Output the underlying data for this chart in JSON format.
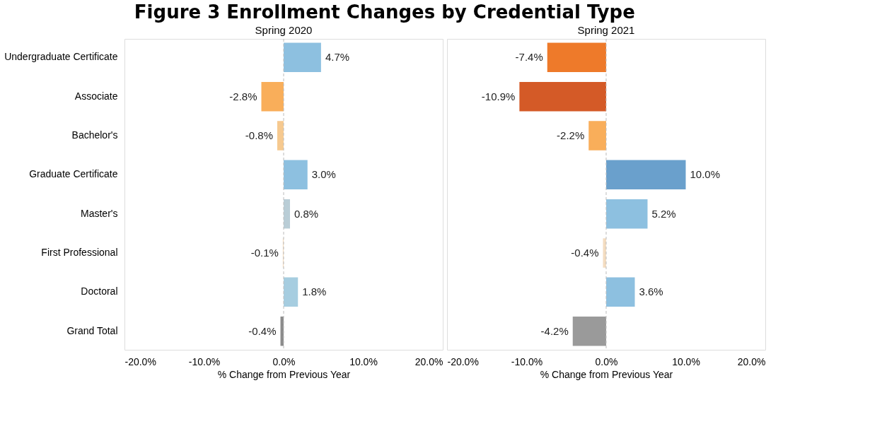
{
  "chart_data": [
    {
      "type": "bar",
      "orientation": "horizontal",
      "title": "Figure 3 Enrollment Changes by Credential Type",
      "subtitle": "Spring 2020",
      "xlabel": "% Change from Previous Year",
      "categories": [
        "Undergraduate Certificate",
        "Associate",
        "Bachelor's",
        "Graduate Certificate",
        "Master's",
        "First Professional",
        "Doctoral",
        "Grand Total"
      ],
      "values": [
        4.7,
        -2.8,
        -0.8,
        3.0,
        0.8,
        -0.1,
        1.8,
        -0.4
      ],
      "value_labels": [
        "4.7%",
        "-2.8%",
        "-0.8%",
        "3.0%",
        "0.8%",
        "-0.1%",
        "1.8%",
        "-0.4%"
      ],
      "colors": [
        "#8dc0e0",
        "#f9ae5a",
        "#f6c98f",
        "#8dc0e0",
        "#b9cdd6",
        "#f3dcc0",
        "#a6cde0",
        "#8c8c8c"
      ],
      "xlim": [
        -20,
        20
      ],
      "xticks": [
        {
          "value": -20,
          "label": "-20.0%"
        },
        {
          "value": -10,
          "label": "-10.0%"
        },
        {
          "value": 0,
          "label": "0.0%"
        },
        {
          "value": 10,
          "label": "10.0%"
        },
        {
          "value": 20,
          "label": "20.0%"
        }
      ],
      "ref_lines": [
        {
          "axis": "x",
          "value": 0,
          "color": "#bbbbbb",
          "line_style": "dashed"
        }
      ]
    },
    {
      "type": "bar",
      "orientation": "horizontal",
      "subtitle": "Spring 2021",
      "xlabel": "% Change from Previous Year",
      "tick_labels": "x",
      "categories": [
        "Undergraduate Certificate",
        "Associate",
        "Bachelor's",
        "Graduate Certificate",
        "Master's",
        "First Professional",
        "Doctoral",
        "Grand Total"
      ],
      "values": [
        -7.4,
        -10.9,
        -2.2,
        10.0,
        5.2,
        -0.4,
        3.6,
        -4.2
      ],
      "value_labels": [
        "-7.4%",
        "-10.9%",
        "-2.2%",
        "10.0%",
        "5.2%",
        "-0.4%",
        "3.6%",
        "-4.2%"
      ],
      "colors": [
        "#ee7a2a",
        "#d45a27",
        "#f9ae5a",
        "#6aa0cc",
        "#8dc0e0",
        "#f3dcc0",
        "#8dc0e0",
        "#9a9a9a"
      ],
      "xlim": [
        -20,
        20
      ],
      "xticks": [
        {
          "value": -20,
          "label": "-20.0%"
        },
        {
          "value": -10,
          "label": "-10.0%"
        },
        {
          "value": 0,
          "label": "0.0%"
        },
        {
          "value": 10,
          "label": "10.0%"
        },
        {
          "value": 20,
          "label": "20.0%"
        }
      ],
      "ref_lines": [
        {
          "axis": "x",
          "value": 0,
          "color": "#bbbbbb",
          "line_style": "dashed"
        }
      ]
    }
  ]
}
